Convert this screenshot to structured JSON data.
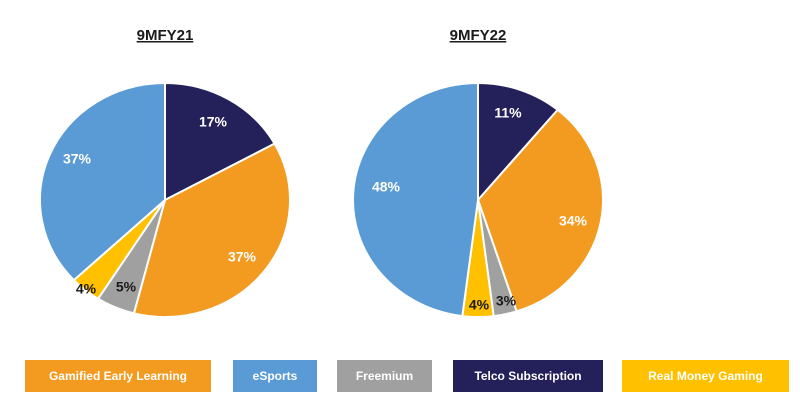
{
  "chart_data": [
    {
      "type": "pie",
      "title": "9MFY21",
      "categories": [
        "Telco Subscription",
        "Gamified Early Learning",
        "Freemium",
        "Real Money Gaming",
        "eSports"
      ],
      "values": [
        17,
        37,
        5,
        4,
        37
      ],
      "labels": [
        "17%",
        "37%",
        "5%",
        "4%",
        "37%"
      ],
      "colors": [
        "#23205a",
        "#f39a21",
        "#a0a0a0",
        "#ffc000",
        "#5b9bd5"
      ]
    },
    {
      "type": "pie",
      "title": "9MFY22",
      "categories": [
        "Telco Subscription",
        "Gamified Early Learning",
        "Freemium",
        "Real Money Gaming",
        "eSports"
      ],
      "values": [
        11,
        34,
        3,
        4,
        48
      ],
      "labels": [
        "11%",
        "34%",
        "3%",
        "4%",
        "48%"
      ],
      "colors": [
        "#23205a",
        "#f39a21",
        "#a0a0a0",
        "#ffc000",
        "#5b9bd5"
      ]
    }
  ],
  "legend": [
    {
      "label": "Gamified Early Learning",
      "color": "#f39a21"
    },
    {
      "label": "eSports",
      "color": "#5b9bd5"
    },
    {
      "label": "Freemium",
      "color": "#a0a0a0"
    },
    {
      "label": "Telco Subscription",
      "color": "#23205a"
    },
    {
      "label": "Real Money Gaming",
      "color": "#ffc000"
    }
  ]
}
